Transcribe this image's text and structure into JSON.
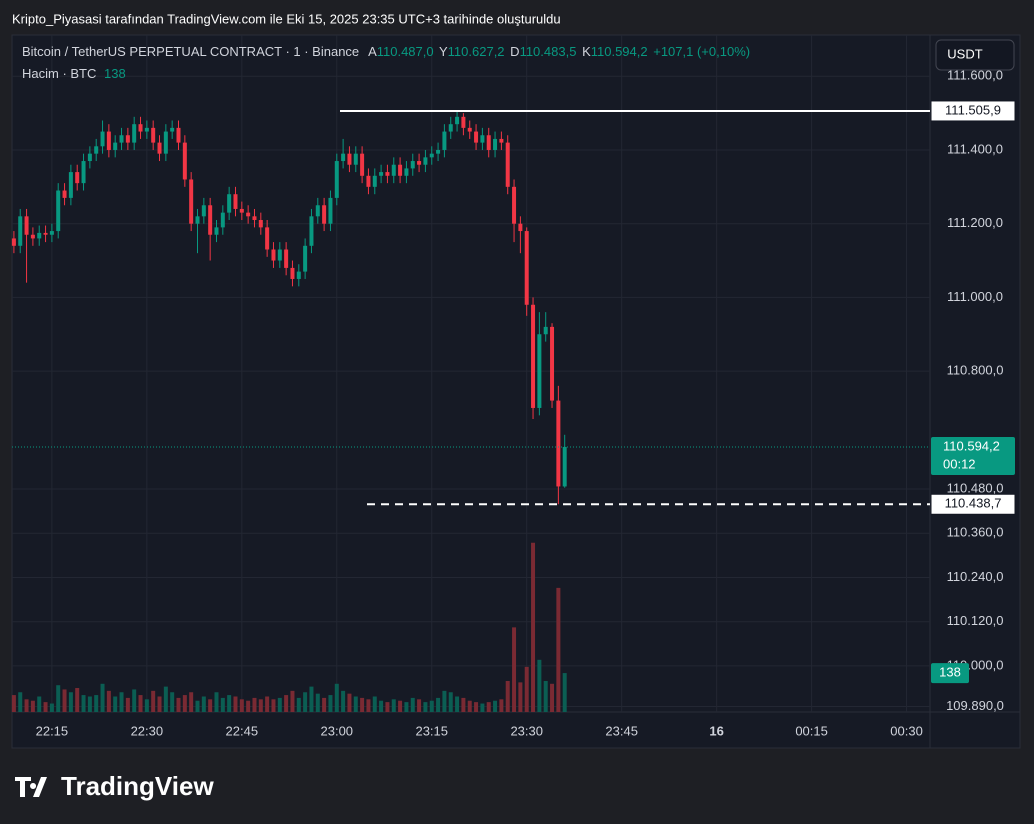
{
  "header": {
    "title": "Kripto_Piyasasi tarafından TradingView.com ile Eki 15, 2025 23:35 UTC+3 tarihinde oluşturuldu"
  },
  "chart_data": {
    "type": "candlestick",
    "symbol": "Bitcoin / TetherUS PERPETUAL CONTRACT · 1 · Binance",
    "ohlc_legend": [
      {
        "label": "A",
        "value": "110.487,0"
      },
      {
        "label": "Y",
        "value": "110.627,2"
      },
      {
        "label": "D",
        "value": "110.483,5"
      },
      {
        "label": "K",
        "value": "110.594,2"
      }
    ],
    "change": "+107,1 (+0,10%)",
    "volume_legend": {
      "label": "Hacim · BTC",
      "value": "138"
    },
    "currency": "USDT",
    "open": [
      111160,
      111140,
      111220,
      111170,
      111160,
      111175,
      111170,
      111180,
      111290,
      111270,
      111340,
      111310,
      111370,
      111390,
      111410,
      111450,
      111400,
      111420,
      111440,
      111420,
      111470,
      111450,
      111460,
      111420,
      111390,
      111450,
      111460,
      111420,
      111320,
      111200,
      111220,
      111250,
      111170,
      111190,
      111230,
      111280,
      111240,
      111230,
      111220,
      111210,
      111190,
      111130,
      111100,
      111130,
      111080,
      111050,
      111070,
      111140,
      111220,
      111250,
      111200,
      111270,
      111370,
      111390,
      111360,
      111390,
      111330,
      111300,
      111330,
      111340,
      111330,
      111360,
      111330,
      111350,
      111370,
      111360,
      111380,
      111390,
      111400,
      111450,
      111470,
      111490,
      111460,
      111450,
      111420,
      111440,
      111400,
      111430,
      111420,
      111300,
      111200,
      111180,
      110980,
      110700,
      110900,
      110920,
      110720,
      110487
    ],
    "high": [
      111180,
      111240,
      111240,
      111190,
      111195,
      111195,
      111200,
      111310,
      111310,
      111360,
      111360,
      111390,
      111410,
      111430,
      111480,
      111470,
      111440,
      111460,
      111460,
      111490,
      111490,
      111480,
      111480,
      111440,
      111470,
      111480,
      111480,
      111440,
      111340,
      111240,
      111270,
      111270,
      111210,
      111250,
      111300,
      111300,
      111260,
      111250,
      111240,
      111230,
      111210,
      111150,
      111150,
      111150,
      111100,
      111090,
      111160,
      111240,
      111270,
      111270,
      111290,
      111390,
      111430,
      111410,
      111410,
      111410,
      111350,
      111350,
      111360,
      111360,
      111380,
      111380,
      111370,
      111390,
      111390,
      111400,
      111410,
      111420,
      111470,
      111490,
      111505.9,
      111500,
      111480,
      111470,
      111460,
      111460,
      111450,
      111450,
      111440,
      111320,
      111220,
      111190,
      111000,
      110960,
      110960,
      110930,
      110760,
      110627.2
    ],
    "low": [
      111120,
      111120,
      111040,
      111140,
      111140,
      111150,
      111150,
      111160,
      111250,
      111250,
      111290,
      111290,
      111350,
      111370,
      111390,
      111380,
      111380,
      111400,
      111400,
      111400,
      111430,
      111430,
      111400,
      111370,
      111370,
      111430,
      111400,
      111300,
      111180,
      111120,
      111200,
      111100,
      111150,
      111170,
      111210,
      111220,
      111210,
      111200,
      111190,
      111170,
      111110,
      111080,
      111080,
      111060,
      111030,
      111030,
      111050,
      111120,
      111200,
      111180,
      111180,
      111250,
      111350,
      111340,
      111340,
      111310,
      111280,
      111280,
      111310,
      111310,
      111310,
      111310,
      111310,
      111330,
      111340,
      111340,
      111360,
      111370,
      111380,
      111430,
      111450,
      111440,
      111430,
      111400,
      111400,
      111380,
      111380,
      111400,
      111280,
      111150,
      111120,
      110950,
      110670,
      110680,
      110880,
      110700,
      110438.7,
      110483.5
    ],
    "close": [
      111140,
      111220,
      111170,
      111160,
      111175,
      111170,
      111180,
      111290,
      111270,
      111340,
      111310,
      111370,
      111390,
      111410,
      111450,
      111400,
      111420,
      111440,
      111420,
      111470,
      111450,
      111460,
      111420,
      111390,
      111450,
      111460,
      111420,
      111320,
      111200,
      111220,
      111250,
      111170,
      111190,
      111230,
      111280,
      111240,
      111230,
      111220,
      111210,
      111190,
      111130,
      111100,
      111130,
      111080,
      111050,
      111070,
      111140,
      111220,
      111250,
      111200,
      111270,
      111370,
      111390,
      111360,
      111390,
      111330,
      111300,
      111330,
      111340,
      111330,
      111360,
      111330,
      111350,
      111370,
      111360,
      111380,
      111390,
      111400,
      111450,
      111470,
      111490,
      111460,
      111450,
      111420,
      111440,
      111400,
      111430,
      111420,
      111300,
      111200,
      111180,
      110980,
      110700,
      110900,
      110920,
      110720,
      110487,
      110594.2
    ],
    "volume": [
      60,
      70,
      45,
      40,
      55,
      35,
      30,
      95,
      80,
      70,
      85,
      60,
      55,
      60,
      100,
      75,
      55,
      70,
      50,
      80,
      60,
      45,
      75,
      55,
      90,
      70,
      50,
      60,
      70,
      40,
      55,
      45,
      70,
      50,
      60,
      55,
      45,
      40,
      50,
      45,
      55,
      45,
      50,
      60,
      75,
      50,
      70,
      90,
      65,
      50,
      60,
      100,
      75,
      65,
      55,
      50,
      45,
      55,
      40,
      35,
      45,
      40,
      35,
      50,
      45,
      35,
      40,
      50,
      75,
      70,
      55,
      50,
      40,
      35,
      30,
      35,
      40,
      45,
      110,
      300,
      105,
      160,
      600,
      185,
      110,
      100,
      440,
      138
    ],
    "up_color": "#089981",
    "down_color": "#f23645",
    "volume_up_color": "#0b5e53",
    "volume_down_color": "#7a2a33",
    "ylim": [
      109875,
      111712
    ],
    "yticks": [
      {
        "value": 111600,
        "label": "111.600,0"
      },
      {
        "value": 111400,
        "label": "111.400,0"
      },
      {
        "value": 111200,
        "label": "111.200,0"
      },
      {
        "value": 111000,
        "label": "111.000,0"
      },
      {
        "value": 110800,
        "label": "110.800,0"
      },
      {
        "value": 110480,
        "label": "110.480,0"
      },
      {
        "value": 110360,
        "label": "110.360,0"
      },
      {
        "value": 110240,
        "label": "110.240,0"
      },
      {
        "value": 110120,
        "label": "110.120,0"
      },
      {
        "value": 110000,
        "label": "110.000,0"
      },
      {
        "value": 109890,
        "label": "109.890,0"
      }
    ],
    "y2lim": [
      0,
      2400
    ],
    "xlim": [
      -0.3,
      144.7
    ],
    "xticks": [
      {
        "value": 6,
        "label": "22:15"
      },
      {
        "value": 21,
        "label": "22:30"
      },
      {
        "value": 36,
        "label": "22:45"
      },
      {
        "value": 51,
        "label": "23:00"
      },
      {
        "value": 66,
        "label": "23:15"
      },
      {
        "value": 81,
        "label": "23:30"
      },
      {
        "value": 96,
        "label": "23:45"
      },
      {
        "value": 111,
        "label": "16",
        "bold": true
      },
      {
        "value": 126,
        "label": "00:15"
      },
      {
        "value": 141,
        "label": "00:30"
      }
    ],
    "grid": true,
    "annotations": [
      {
        "value": 111505.9,
        "label": "111.505,9",
        "style": "solid"
      },
      {
        "value": 110438.7,
        "label": "110.438,7",
        "style": "dashed"
      }
    ],
    "last_price": {
      "value": 110594.2,
      "label": "110.594,2",
      "countdown": "00:12"
    },
    "last_volume": {
      "value": 138,
      "label": "138"
    }
  },
  "footer": {
    "brand": "TradingView"
  }
}
